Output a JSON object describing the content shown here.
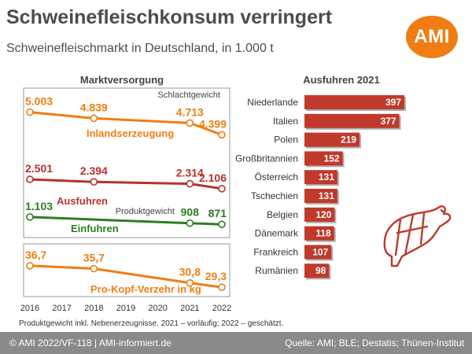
{
  "header": {
    "title": "Schweinefleischkonsum verringert",
    "subtitle": "Schweinefleischmarkt in Deutschland, in 1.000 t",
    "logo": "AMI"
  },
  "footnote": "Produktgewicht inkl. Nebenerzeugnisse. 2021 – vorläufig; 2022 – geschätzt.",
  "footer": {
    "left": "© AMI 2022/VF-118 | AMI-informiert.de",
    "right": "Quelle: AMI; BLE; Destatis; Thünen-Institut"
  },
  "icons": {
    "pig": "pig-cuts-icon"
  },
  "colors": {
    "orange": "#f07d14",
    "red": "#b7322c",
    "green": "#2e7d22",
    "bar": "#c0392b",
    "text": "#4d4d4d",
    "footer_bg": "#8a8a8a"
  },
  "chart_data": [
    {
      "type": "line",
      "title": "Marktversorgung",
      "x": [
        "2016",
        "2017",
        "2018",
        "2019",
        "2020",
        "2021",
        "2022"
      ],
      "annotations": [
        "Schlachtgewicht",
        "Produktgewicht"
      ],
      "series": [
        {
          "name": "Inlandserzeugung",
          "color": "#f07d14",
          "x": [
            "2016",
            "2018",
            "2021",
            "2022"
          ],
          "values": [
            5003,
            4839,
            4713,
            4399
          ],
          "labels": [
            "5.003",
            "4.839",
            "4.713",
            "4.399"
          ]
        },
        {
          "name": "Ausfuhren",
          "color": "#b7322c",
          "x": [
            "2016",
            "2018",
            "2021",
            "2022"
          ],
          "values": [
            2501,
            2394,
            2314,
            2106
          ],
          "labels": [
            "2.501",
            "2.394",
            "2.314",
            "2.106"
          ]
        },
        {
          "name": "Einfuhren",
          "color": "#2e7d22",
          "x": [
            "2016",
            "2021",
            "2022"
          ],
          "values": [
            1103,
            908,
            871
          ],
          "labels": [
            "1.103",
            "908",
            "871"
          ]
        },
        {
          "name": "Pro-Kopf-Verzehr in kg",
          "color": "#f07d14",
          "x": [
            "2016",
            "2018",
            "2021",
            "2022"
          ],
          "values": [
            36.7,
            35.7,
            30.8,
            29.3
          ],
          "labels": [
            "36,7",
            "35,7",
            "30,8",
            "29,3"
          ]
        }
      ]
    },
    {
      "type": "bar",
      "orientation": "horizontal",
      "title": "Ausfuhren 2021",
      "categories": [
        "Niederlande",
        "Italien",
        "Polen",
        "Großbritannien",
        "Österreich",
        "Tschechien",
        "Belgien",
        "Dänemark",
        "Frankreich",
        "Rumänien"
      ],
      "values": [
        397,
        377,
        219,
        152,
        131,
        131,
        120,
        118,
        107,
        98
      ]
    }
  ]
}
